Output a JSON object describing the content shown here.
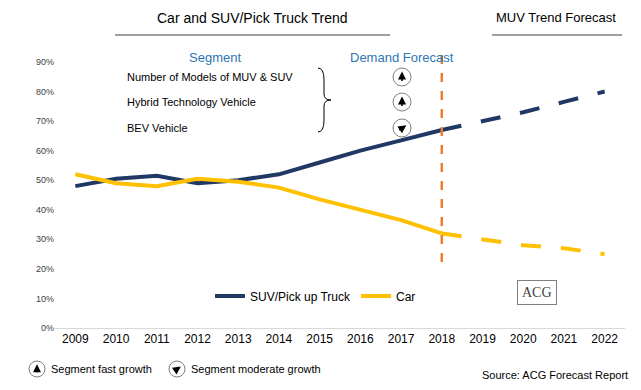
{
  "chart_data": {
    "type": "line",
    "title": "Car and SUV/Pick Truck Trend",
    "subtitle": "MUV Trend Forecast",
    "x": [
      2009,
      2010,
      2011,
      2012,
      2013,
      2014,
      2015,
      2016,
      2017,
      2018,
      2019,
      2020,
      2021,
      2022
    ],
    "xlim": [
      2008.5,
      2022.5
    ],
    "xticks": [
      2009,
      2010,
      2011,
      2012,
      2013,
      2014,
      2015,
      2016,
      2017,
      2018,
      2019,
      2020,
      2021,
      2022
    ],
    "ylim": [
      0,
      90
    ],
    "yticks": [
      {
        "value": 0,
        "label": "0%"
      },
      {
        "value": 10,
        "label": "10%"
      },
      {
        "value": 20,
        "label": "20%"
      },
      {
        "value": 30,
        "label": "30%"
      },
      {
        "value": 40,
        "label": "40%"
      },
      {
        "value": 50,
        "label": "50%"
      },
      {
        "value": 60,
        "label": "60%"
      },
      {
        "value": 70,
        "label": "70%"
      },
      {
        "value": 80,
        "label": "80%"
      },
      {
        "value": 90,
        "label": "90%"
      }
    ],
    "grid": false,
    "legend": "bottom",
    "forecast_start": 2018,
    "series": [
      {
        "name": "SUV/Pick up Truck",
        "color": "#203864",
        "line_style": "solid",
        "values": [
          48,
          50.5,
          51.5,
          49,
          50,
          52,
          56,
          60,
          63.5,
          67,
          null,
          null,
          null,
          null
        ]
      },
      {
        "name": "Car",
        "color": "#ffc000",
        "line_style": "solid",
        "values": [
          52,
          49,
          48,
          50.5,
          49.5,
          47.5,
          43.5,
          40,
          36.5,
          32,
          null,
          null,
          null,
          null
        ]
      },
      {
        "name": "SUV/Pick up Truck",
        "color": "#203864",
        "line_style": "dashed",
        "values": [
          null,
          null,
          null,
          null,
          null,
          null,
          null,
          null,
          null,
          67,
          70,
          73,
          76.5,
          80
        ]
      },
      {
        "name": "Car",
        "color": "#ffc000",
        "line_style": "dashed",
        "values": [
          null,
          null,
          null,
          null,
          null,
          null,
          null,
          null,
          null,
          32,
          30,
          28,
          27,
          25
        ]
      }
    ],
    "segment_table": {
      "header": "Segment",
      "demand_header": "Demand Forecast",
      "rows": [
        {
          "label": "Number of Models of MUV & SUV",
          "demand": "fast"
        },
        {
          "label": "Hybrid Technology Vehicle",
          "demand": "fast"
        },
        {
          "label": "BEV Vehicle",
          "demand": "moderate"
        }
      ]
    },
    "growth_key": [
      {
        "demand": "fast",
        "text": "Segment fast growth"
      },
      {
        "demand": "moderate",
        "text": "Segment moderate growth"
      }
    ],
    "source": "Source: ACG Forecast Report",
    "logo": "ACG"
  }
}
